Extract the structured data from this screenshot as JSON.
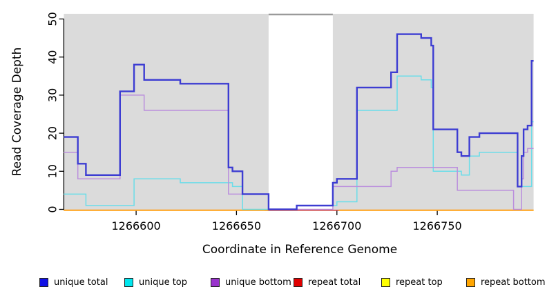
{
  "chart_data": {
    "type": "line",
    "style": "step",
    "title": "",
    "xlabel": "Coordinate in Reference Genome",
    "ylabel": "Read Coverage Depth",
    "xlim": [
      1266564,
      1266798
    ],
    "ylim": [
      0,
      51
    ],
    "x_ticks": [
      1266600,
      1266650,
      1266700,
      1266750
    ],
    "y_ticks": [
      0,
      10,
      20,
      30,
      40,
      50
    ],
    "grid": false,
    "legend_position": "bottom",
    "plot_bg": "#dbdbdb",
    "shaded_regions": [
      [
        1266564,
        1266666
      ],
      [
        1266698,
        1266798
      ]
    ],
    "white_gap_region": [
      1266666,
      1266698
    ],
    "series": [
      {
        "name": "repeat top",
        "color": "#ffff00",
        "width": 1.6,
        "y_nudge": 1.3,
        "draw_segments": [
          [
            1266564,
            1266798
          ]
        ],
        "steps": [
          [
            1266564,
            0
          ]
        ]
      },
      {
        "name": "repeat total",
        "color": "#d04050",
        "width": 1.6,
        "y_nudge": 1.3,
        "draw_segments": [
          [
            1266664,
            1266701
          ]
        ],
        "steps": [
          [
            1266564,
            0
          ]
        ]
      },
      {
        "name": "repeat bottom",
        "color": "#ff9f1f",
        "width": 2,
        "y_nudge": 1.3,
        "draw_segments": [
          [
            1266564,
            1266666
          ],
          [
            1266701,
            1266798
          ]
        ],
        "steps": [
          [
            1266564,
            0
          ]
        ]
      },
      {
        "name": "unique top",
        "color": "#6adde9",
        "width": 1.5,
        "steps": [
          [
            1266564,
            4
          ],
          [
            1266575,
            1
          ],
          [
            1266599,
            8
          ],
          [
            1266622,
            7
          ],
          [
            1266648,
            6
          ],
          [
            1266653,
            0
          ],
          [
            1266680,
            1
          ],
          [
            1266700,
            2
          ],
          [
            1266710,
            26
          ],
          [
            1266730,
            35
          ],
          [
            1266742,
            34
          ],
          [
            1266747,
            32
          ],
          [
            1266748,
            10
          ],
          [
            1266762,
            9
          ],
          [
            1266766,
            14
          ],
          [
            1266771,
            15
          ],
          [
            1266790,
            6
          ],
          [
            1266797,
            23
          ]
        ]
      },
      {
        "name": "unique bottom",
        "color": "#bb8fdd",
        "width": 1.5,
        "steps": [
          [
            1266564,
            15
          ],
          [
            1266571,
            8
          ],
          [
            1266592,
            30
          ],
          [
            1266604,
            26
          ],
          [
            1266646,
            4
          ],
          [
            1266666,
            0
          ],
          [
            1266698,
            6
          ],
          [
            1266727,
            10
          ],
          [
            1266730,
            11
          ],
          [
            1266760,
            5
          ],
          [
            1266788,
            0
          ],
          [
            1266792,
            8
          ],
          [
            1266793,
            15
          ],
          [
            1266795,
            16
          ]
        ]
      },
      {
        "name": "unique total",
        "color": "#3c3cd2",
        "width": 2.4,
        "steps": [
          [
            1266564,
            19
          ],
          [
            1266571,
            12
          ],
          [
            1266575,
            9
          ],
          [
            1266592,
            31
          ],
          [
            1266599,
            38
          ],
          [
            1266604,
            34
          ],
          [
            1266622,
            33
          ],
          [
            1266646,
            11
          ],
          [
            1266648,
            10
          ],
          [
            1266653,
            4
          ],
          [
            1266666,
            0
          ],
          [
            1266680,
            1
          ],
          [
            1266698,
            7
          ],
          [
            1266700,
            8
          ],
          [
            1266710,
            32
          ],
          [
            1266727,
            36
          ],
          [
            1266730,
            46
          ],
          [
            1266742,
            45
          ],
          [
            1266747,
            43
          ],
          [
            1266748,
            21
          ],
          [
            1266760,
            15
          ],
          [
            1266762,
            14
          ],
          [
            1266766,
            19
          ],
          [
            1266771,
            20
          ],
          [
            1266790,
            6
          ],
          [
            1266792,
            14
          ],
          [
            1266793,
            21
          ],
          [
            1266795,
            22
          ],
          [
            1266797,
            39
          ]
        ]
      }
    ],
    "legend": [
      {
        "label": "unique total",
        "swatch": "#1010e6"
      },
      {
        "label": "unique top",
        "swatch": "#00e6ee"
      },
      {
        "label": "unique bottom",
        "swatch": "#9933cc"
      },
      {
        "label": "repeat total",
        "swatch": "#e00000"
      },
      {
        "label": "repeat top",
        "swatch": "#ffff00"
      },
      {
        "label": "repeat bottom",
        "swatch": "#ffa500"
      }
    ]
  }
}
